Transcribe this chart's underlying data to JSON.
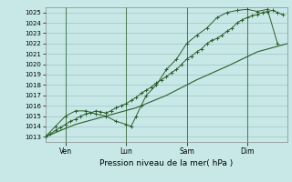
{
  "xlabel": "Pression niveau de la mer( hPa )",
  "ylim": [
    1012.5,
    1025.5
  ],
  "yticks": [
    1013,
    1014,
    1015,
    1016,
    1017,
    1018,
    1019,
    1020,
    1021,
    1022,
    1023,
    1024,
    1025
  ],
  "bg_color": "#c8e8e8",
  "grid_color": "#99bbbb",
  "line_color": "#2a5e2a",
  "vline_color": "#3a6e3a",
  "day_positions": [
    8,
    32,
    56,
    80
  ],
  "day_labels": [
    "Ven",
    "Lun",
    "Sam",
    "Dim"
  ],
  "xlim": [
    0,
    96
  ],
  "line1_x": [
    0,
    2,
    4,
    6,
    8,
    10,
    12,
    14,
    16,
    18,
    20,
    22,
    24,
    26,
    28,
    30,
    32,
    34,
    36,
    38,
    40,
    42,
    44,
    46,
    48,
    50,
    52,
    54,
    56,
    58,
    60,
    62,
    64,
    66,
    68,
    70,
    72,
    74,
    76,
    78,
    80,
    82,
    84,
    86,
    88,
    90,
    92,
    94
  ],
  "line1_y": [
    1013.0,
    1013.3,
    1013.6,
    1013.9,
    1014.2,
    1014.5,
    1014.7,
    1015.0,
    1015.2,
    1015.3,
    1015.5,
    1015.4,
    1015.3,
    1015.5,
    1015.8,
    1016.0,
    1016.2,
    1016.5,
    1016.8,
    1017.2,
    1017.5,
    1017.8,
    1018.2,
    1018.5,
    1018.8,
    1019.2,
    1019.5,
    1020.0,
    1020.5,
    1020.8,
    1021.2,
    1021.5,
    1022.0,
    1022.3,
    1022.5,
    1022.8,
    1023.2,
    1023.5,
    1024.0,
    1024.3,
    1024.5,
    1024.7,
    1024.8,
    1025.0,
    1025.1,
    1025.2,
    1025.0,
    1024.8
  ],
  "line2_x": [
    0,
    4,
    8,
    12,
    16,
    20,
    24,
    28,
    32,
    34,
    36,
    38,
    40,
    44,
    48,
    52,
    56,
    60,
    64,
    68,
    72,
    76,
    80,
    84,
    88,
    92
  ],
  "line2_y": [
    1013.0,
    1014.0,
    1015.0,
    1015.5,
    1015.5,
    1015.2,
    1015.0,
    1014.5,
    1014.2,
    1014.0,
    1015.0,
    1016.0,
    1017.0,
    1018.0,
    1019.5,
    1020.5,
    1022.0,
    1022.8,
    1023.5,
    1024.5,
    1025.0,
    1025.2,
    1025.3,
    1025.1,
    1025.3,
    1022.0
  ],
  "line3_x": [
    0,
    12,
    24,
    36,
    48,
    60,
    72,
    84,
    96
  ],
  "line3_y": [
    1013.0,
    1014.2,
    1015.0,
    1015.8,
    1017.0,
    1018.5,
    1019.8,
    1021.2,
    1022.0
  ]
}
